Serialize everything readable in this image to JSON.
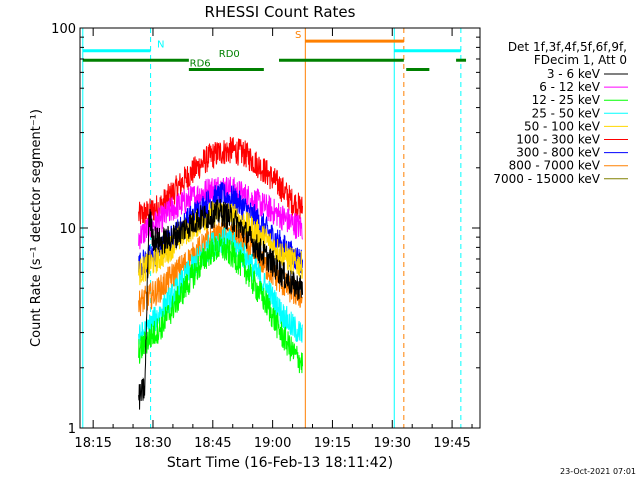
{
  "chart_data": {
    "type": "line",
    "title": "RHESSI Count Rates",
    "xlabel": "Start Time (16-Feb-13 18:11:42)",
    "ylabel": "Count Rate (s⁻¹ detector segment⁻¹)",
    "y_scale": "log",
    "ylim": [
      1,
      100
    ],
    "xlim_minutes_since_midnight": [
      1091.7,
      1192.0
    ],
    "x_ticks": [
      "18:15",
      "18:30",
      "18:45",
      "19:00",
      "19:15",
      "19:30",
      "19:45"
    ],
    "x_tick_minutes": [
      1095,
      1110,
      1125,
      1140,
      1155,
      1170,
      1185
    ],
    "y_ticks": [
      "1",
      "10",
      "100"
    ],
    "y_tick_values": [
      1,
      10,
      100
    ],
    "grid": false,
    "legend_position": "right",
    "legend_header": [
      "Det 1f,3f,4f,5f,6f,9f,",
      "FDecim 1, Att 0"
    ],
    "data_start_minute": 1106.4,
    "data_end_minute": 1147.5,
    "series": [
      {
        "name": "3 - 6 keV",
        "color": "#000000",
        "x": [
          1106.4,
          1108,
          1109,
          1110,
          1112,
          1115,
          1118,
          1121,
          1124,
          1127,
          1130,
          1133,
          1136,
          1139,
          1142,
          1145,
          1147.5
        ],
        "values": [
          1.4,
          1.6,
          12.0,
          9.0,
          8.5,
          9.0,
          10.0,
          11.0,
          11.5,
          12.0,
          11.0,
          9.5,
          8.0,
          7.0,
          6.0,
          5.2,
          5.0
        ]
      },
      {
        "name": "6 - 12 keV",
        "color": "#ff00ff",
        "x": [
          1106.4,
          1109,
          1112,
          1115,
          1118,
          1121,
          1124,
          1127,
          1130,
          1133,
          1136,
          1139,
          1142,
          1145,
          1147.5
        ],
        "values": [
          9.0,
          10.0,
          11.0,
          12.5,
          13.5,
          14.5,
          15.5,
          16.0,
          15.5,
          14.5,
          13.5,
          12.5,
          11.5,
          10.5,
          10.0
        ]
      },
      {
        "name": "12 - 25 keV",
        "color": "#00ff00",
        "x": [
          1106.4,
          1109,
          1112,
          1115,
          1118,
          1121,
          1124,
          1127,
          1130,
          1133,
          1136,
          1139,
          1142,
          1145,
          1147.5
        ],
        "values": [
          2.4,
          2.8,
          3.2,
          4.0,
          5.0,
          6.2,
          7.5,
          8.0,
          7.3,
          6.3,
          5.0,
          4.0,
          3.0,
          2.4,
          2.1
        ]
      },
      {
        "name": "25 - 50 keV",
        "color": "#00ffff",
        "x": [
          1106.4,
          1109,
          1112,
          1115,
          1118,
          1121,
          1124,
          1127,
          1130,
          1133,
          1136,
          1139,
          1142,
          1145,
          1147.5
        ],
        "values": [
          2.8,
          3.2,
          3.8,
          4.6,
          5.6,
          6.8,
          8.0,
          8.8,
          8.3,
          7.2,
          6.0,
          4.8,
          3.8,
          3.2,
          2.9
        ]
      },
      {
        "name": "50 - 100 keV",
        "color": "#ffd700",
        "x": [
          1106.4,
          1109,
          1112,
          1115,
          1118,
          1121,
          1124,
          1127,
          1130,
          1133,
          1136,
          1139,
          1142,
          1145,
          1147.5
        ],
        "values": [
          6.0,
          6.5,
          7.2,
          8.2,
          9.5,
          10.5,
          11.5,
          12.0,
          11.5,
          10.5,
          9.5,
          8.5,
          7.5,
          6.8,
          6.5
        ]
      },
      {
        "name": "100 - 300 keV",
        "color": "#ff0000",
        "x": [
          1106.4,
          1109,
          1112,
          1115,
          1118,
          1121,
          1124,
          1127,
          1130,
          1133,
          1136,
          1139,
          1142,
          1145,
          1147.5
        ],
        "values": [
          11.5,
          12.0,
          13.0,
          15.0,
          17.5,
          20.0,
          22.5,
          24.0,
          24.5,
          23.5,
          21.0,
          18.5,
          16.0,
          13.5,
          12.5
        ]
      },
      {
        "name": "300 - 800 keV",
        "color": "#0000ff",
        "x": [
          1106.4,
          1109,
          1112,
          1115,
          1118,
          1121,
          1124,
          1127,
          1130,
          1133,
          1136,
          1139,
          1142,
          1145,
          1147.5
        ],
        "values": [
          6.5,
          7.0,
          7.8,
          9.0,
          10.5,
          12.0,
          13.5,
          14.5,
          14.0,
          12.5,
          11.0,
          9.5,
          8.3,
          7.3,
          6.8
        ]
      },
      {
        "name": "800 - 7000 keV",
        "color": "#ff8000",
        "x": [
          1106.4,
          1109,
          1112,
          1115,
          1118,
          1121,
          1124,
          1127,
          1130,
          1133,
          1136,
          1139,
          1142,
          1145,
          1147.5
        ],
        "values": [
          4.2,
          4.5,
          5.0,
          5.8,
          6.6,
          7.6,
          8.6,
          9.2,
          9.0,
          8.2,
          7.2,
          6.2,
          5.4,
          4.8,
          4.5
        ]
      },
      {
        "name": "7000 - 15000 keV",
        "color": "#808000",
        "x": [],
        "values": []
      }
    ],
    "annotations": {
      "vertical_lines": [
        {
          "minute": 1092.4,
          "color": "#00ffff",
          "style": "solid"
        },
        {
          "minute": 1109.4,
          "color": "#00ffff",
          "style": "dashed"
        },
        {
          "minute": 1148.2,
          "color": "#ff8000",
          "style": "solid"
        },
        {
          "minute": 1170.5,
          "color": "#00ffff",
          "style": "solid"
        },
        {
          "minute": 1172.9,
          "color": "#ff8000",
          "style": "dashed"
        },
        {
          "minute": 1187.2,
          "color": "#00ffff",
          "style": "dashed"
        }
      ],
      "bars": [
        {
          "label": "N",
          "color": "#00ffff",
          "y": 77,
          "segments": [
            [
              1092.4,
              1109.4
            ],
            [
              1170.5,
              1187.2
            ]
          ],
          "label_minute": 1111.0
        },
        {
          "label": "S",
          "color": "#ff8000",
          "y": 86,
          "segments": [
            [
              1148.2,
              1172.9
            ]
          ],
          "label_minute": 1145.6
        },
        {
          "label": "RD0",
          "color": "#008000",
          "y": 69,
          "segments": [
            [
              1092.4,
              1119.0
            ],
            [
              1141.6,
              1172.9
            ],
            [
              1186.0,
              1188.5
            ]
          ],
          "label_minute": 1126.5
        },
        {
          "label": "RD6",
          "color": "#008000",
          "y": 62,
          "segments": [
            [
              1119.0,
              1137.8
            ],
            [
              1173.5,
              1179.3
            ]
          ],
          "label_minute": 1119.2
        }
      ]
    },
    "footer_date": "23-Oct-2021 07:01"
  }
}
